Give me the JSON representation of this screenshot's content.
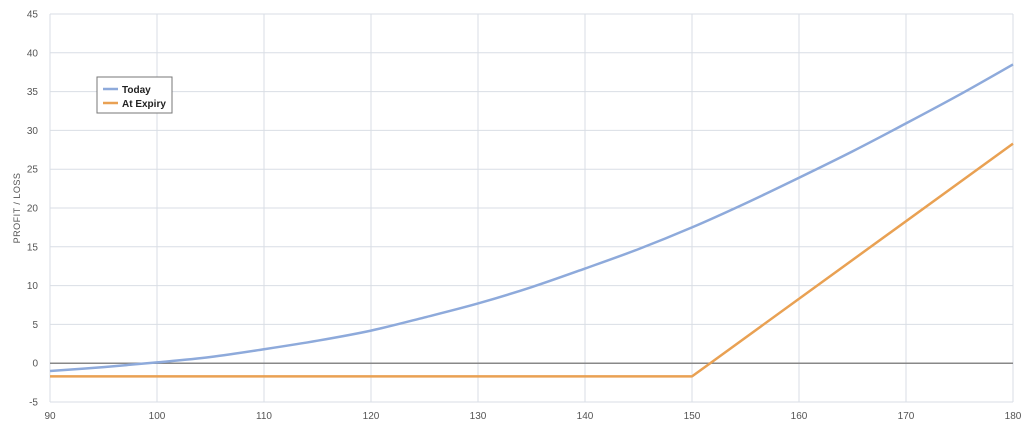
{
  "chart_data": {
    "type": "line",
    "ylabel": "PROFIT / LOSS",
    "xlim": [
      90,
      180
    ],
    "ylim": [
      -5,
      45
    ],
    "xticks": [
      "90",
      "100",
      "110",
      "120",
      "130",
      "140",
      "150",
      "160",
      "170",
      "180"
    ],
    "yticks": [
      "-5",
      "0",
      "5",
      "10",
      "15",
      "20",
      "25",
      "30",
      "35",
      "40",
      "45"
    ],
    "grid": true,
    "legend": "top-left",
    "series": [
      {
        "name": "Today",
        "color": "#8eaadb",
        "x": [
          90,
          95,
          100,
          105,
          110,
          115,
          120,
          125,
          130,
          135,
          140,
          145,
          150,
          155,
          160,
          165,
          170,
          175,
          180
        ],
        "y": [
          -1.0,
          -0.5,
          0.1,
          0.8,
          1.8,
          2.9,
          4.2,
          5.9,
          7.7,
          9.8,
          12.2,
          14.7,
          17.5,
          20.6,
          23.9,
          27.3,
          30.9,
          34.6,
          38.5
        ]
      },
      {
        "name": "At Expiry",
        "color": "#e9a153",
        "x": [
          90,
          150,
          151.7,
          180
        ],
        "y": [
          -1.7,
          -1.7,
          0,
          28.3
        ]
      }
    ],
    "zero_line_color": "#888888"
  }
}
